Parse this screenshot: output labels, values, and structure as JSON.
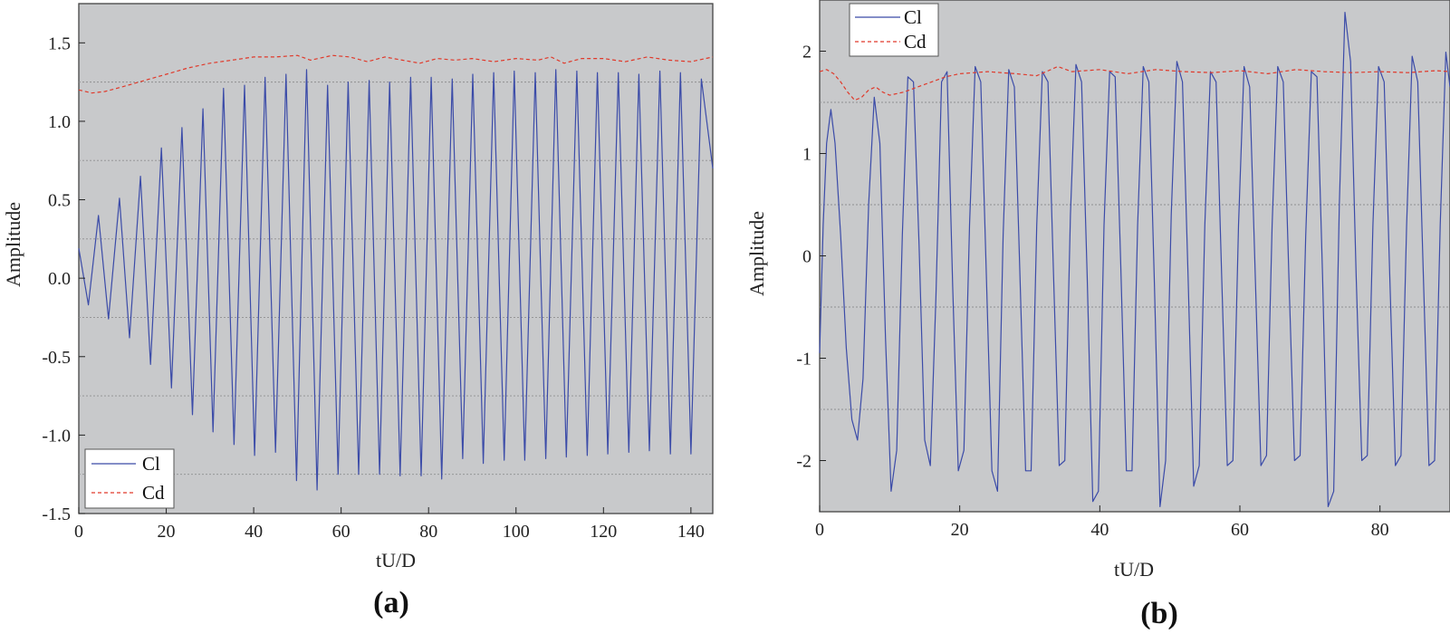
{
  "colors": {
    "cl": "#3b4ba8",
    "cd": "#e0392a",
    "plot_background": "#c8c9cb"
  },
  "chart_data": [
    {
      "type": "line",
      "panel_label": "(a)",
      "xlabel": "tU/D",
      "ylabel": "Amplitude",
      "xlim": [
        0,
        145
      ],
      "ylim": [
        -1.5,
        1.75
      ],
      "x_ticks": [
        0,
        20,
        40,
        60,
        80,
        100,
        120,
        140
      ],
      "y_ticks": [
        -1.5,
        -1.0,
        -0.5,
        0.0,
        0.5,
        1.0,
        1.5
      ],
      "y_tick_labels": [
        "-1.5",
        "-1.0",
        "-0.5",
        "0.0",
        "0.5",
        "1.0",
        "1.5"
      ],
      "grid": "horizontal dotted",
      "legend_position": "bottom-left",
      "series": [
        {
          "name": "Cl",
          "style": "solid",
          "color_key": "cl",
          "x": [
            0,
            2.2,
            4.5,
            6.8,
            9.3,
            11.6,
            14.1,
            16.4,
            18.9,
            21.2,
            23.6,
            26.0,
            28.4,
            30.7,
            33.1,
            35.5,
            37.9,
            40.2,
            42.6,
            45.0,
            47.4,
            49.8,
            52.1,
            54.5,
            56.9,
            59.3,
            61.6,
            64.0,
            66.4,
            68.8,
            71.1,
            73.5,
            75.9,
            78.3,
            80.6,
            83.0,
            85.4,
            87.8,
            90.1,
            92.5,
            94.9,
            97.3,
            99.6,
            102.0,
            104.4,
            106.8,
            109.1,
            111.5,
            113.9,
            116.3,
            118.6,
            121.0,
            123.4,
            125.8,
            128.1,
            130.5,
            132.9,
            135.3,
            137.6,
            140.0,
            142.4,
            145.0
          ],
          "y": [
            0.19,
            -0.17,
            0.4,
            -0.26,
            0.51,
            -0.38,
            0.65,
            -0.55,
            0.83,
            -0.7,
            0.96,
            -0.87,
            1.08,
            -0.98,
            1.21,
            -1.06,
            1.23,
            -1.13,
            1.28,
            -1.11,
            1.3,
            -1.29,
            1.33,
            -1.35,
            1.23,
            -1.25,
            1.25,
            -1.25,
            1.26,
            -1.25,
            1.25,
            -1.26,
            1.28,
            -1.26,
            1.28,
            -1.28,
            1.27,
            -1.15,
            1.3,
            -1.18,
            1.31,
            -1.16,
            1.32,
            -1.16,
            1.31,
            -1.15,
            1.33,
            -1.14,
            1.32,
            -1.13,
            1.31,
            -1.12,
            1.31,
            -1.11,
            1.3,
            -1.1,
            1.32,
            -1.12,
            1.31,
            -1.12,
            1.27,
            0.7
          ]
        },
        {
          "name": "Cd",
          "style": "dashed",
          "color_key": "cd",
          "x": [
            0,
            3,
            6,
            10,
            15,
            20,
            25,
            30,
            35,
            40,
            45,
            50,
            53,
            58,
            62,
            66,
            70,
            74,
            78,
            82,
            86,
            90,
            95,
            100,
            105,
            108,
            111,
            115,
            120,
            125,
            130,
            135,
            140,
            145
          ],
          "y": [
            1.2,
            1.18,
            1.19,
            1.22,
            1.26,
            1.3,
            1.34,
            1.37,
            1.39,
            1.41,
            1.41,
            1.42,
            1.39,
            1.42,
            1.41,
            1.38,
            1.41,
            1.39,
            1.37,
            1.4,
            1.39,
            1.4,
            1.38,
            1.4,
            1.39,
            1.41,
            1.37,
            1.4,
            1.4,
            1.38,
            1.41,
            1.39,
            1.38,
            1.41
          ]
        }
      ]
    },
    {
      "type": "line",
      "panel_label": "(b)",
      "xlabel": "tU/D",
      "ylabel": "Amplitude",
      "xlim": [
        0,
        90
      ],
      "ylim": [
        -2.5,
        2.5
      ],
      "x_ticks": [
        0,
        20,
        40,
        60,
        80
      ],
      "y_ticks": [
        -2,
        -1,
        0,
        1,
        2
      ],
      "y_tick_labels": [
        "-2",
        "-1",
        "0",
        "1",
        "2"
      ],
      "grid": "horizontal dotted",
      "legend_position": "top-left",
      "series": [
        {
          "name": "Cl",
          "style": "solid",
          "color_key": "cl",
          "x": [
            0,
            0.5,
            1.0,
            1.6,
            2.2,
            3.0,
            3.8,
            4.6,
            5.4,
            6.2,
            7.0,
            7.8,
            8.6,
            9.4,
            10.2,
            11.0,
            11.8,
            12.6,
            13.4,
            14.2,
            15.0,
            15.8,
            16.6,
            17.4,
            18.2,
            19.0,
            19.8,
            20.6,
            21.4,
            22.2,
            23.0,
            23.8,
            24.6,
            25.4,
            26.2,
            27.0,
            27.8,
            28.6,
            29.4,
            30.2,
            31.0,
            31.8,
            32.6,
            33.4,
            34.2,
            35.0,
            35.8,
            36.6,
            37.4,
            38.2,
            39.0,
            39.8,
            40.6,
            41.4,
            42.2,
            43.0,
            43.8,
            44.6,
            45.4,
            46.2,
            47.0,
            47.8,
            48.6,
            49.4,
            50.2,
            51.0,
            51.8,
            52.6,
            53.4,
            54.2,
            55.0,
            55.8,
            56.6,
            57.4,
            58.2,
            59.0,
            59.8,
            60.6,
            61.4,
            62.2,
            63.0,
            63.8,
            64.6,
            65.4,
            66.2,
            67.0,
            67.8,
            68.6,
            69.4,
            70.2,
            71.0,
            71.8,
            72.6,
            73.4,
            74.2,
            75.0,
            75.8,
            76.6,
            77.4,
            78.2,
            79.0,
            79.8,
            80.6,
            81.4,
            82.2,
            83.0,
            83.8,
            84.6,
            85.4,
            86.2,
            87.0,
            87.8,
            88.6,
            89.4,
            90.0
          ],
          "y": [
            -0.95,
            0.3,
            1.1,
            1.43,
            1.1,
            0.2,
            -0.9,
            -1.6,
            -1.8,
            -1.2,
            0.5,
            1.55,
            1.1,
            -0.8,
            -2.3,
            -1.9,
            0.2,
            1.75,
            1.7,
            0.1,
            -1.8,
            -2.05,
            -0.4,
            1.7,
            1.8,
            -0.3,
            -2.1,
            -1.9,
            0.3,
            1.85,
            1.7,
            -0.2,
            -2.1,
            -2.3,
            0.2,
            1.82,
            1.65,
            -0.2,
            -2.1,
            -2.1,
            0.3,
            1.8,
            1.7,
            -0.2,
            -2.05,
            -2.0,
            0.4,
            1.87,
            1.7,
            -0.2,
            -2.4,
            -2.3,
            0.3,
            1.8,
            1.75,
            -0.1,
            -2.1,
            -2.1,
            0.3,
            1.85,
            1.7,
            -0.3,
            -2.45,
            -2.0,
            0.4,
            1.9,
            1.7,
            -0.2,
            -2.25,
            -2.05,
            0.3,
            1.8,
            1.7,
            -0.2,
            -2.05,
            -2.0,
            0.3,
            1.85,
            1.65,
            -0.2,
            -2.05,
            -1.95,
            0.3,
            1.85,
            1.7,
            -0.2,
            -2.0,
            -1.95,
            0.2,
            1.8,
            1.75,
            -0.2,
            -2.45,
            -2.3,
            0.5,
            2.38,
            1.9,
            -0.2,
            -2.0,
            -1.95,
            0.3,
            1.85,
            1.7,
            -0.2,
            -2.05,
            -1.95,
            0.3,
            1.95,
            1.7,
            -0.2,
            -2.05,
            -2.0,
            0.3,
            1.99,
            1.65
          ]
        },
        {
          "name": "Cd",
          "style": "dashed",
          "color_key": "cd",
          "x": [
            0,
            1,
            2,
            3,
            4,
            5,
            6,
            7,
            8,
            9,
            10,
            12,
            14,
            16,
            18,
            20,
            24,
            28,
            31,
            34,
            36,
            40,
            44,
            48,
            52,
            56,
            60,
            64,
            68,
            72,
            76,
            80,
            84,
            88,
            90
          ],
          "y": [
            1.8,
            1.82,
            1.78,
            1.7,
            1.6,
            1.52,
            1.55,
            1.62,
            1.65,
            1.6,
            1.57,
            1.6,
            1.65,
            1.7,
            1.75,
            1.78,
            1.8,
            1.78,
            1.76,
            1.85,
            1.8,
            1.82,
            1.78,
            1.82,
            1.8,
            1.79,
            1.81,
            1.78,
            1.82,
            1.8,
            1.79,
            1.8,
            1.79,
            1.81,
            1.8
          ]
        }
      ]
    }
  ]
}
